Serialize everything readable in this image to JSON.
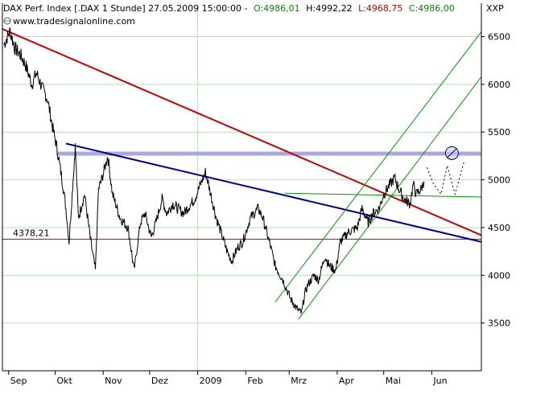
{
  "header": {
    "instrument": "DAX Perf. Index [.DAX  1 Stunde] 27.05.2009 15:00:00 -",
    "open": "O:4986,01",
    "high": "H:4992,22",
    "low": "L:4968,75",
    "close": "C:4986,00",
    "source": "www.tradesignalonline.com",
    "corner_label": "XXP"
  },
  "chart_data": {
    "type": "line",
    "title": "DAX Perf. Index [.DAX  1 Stunde]",
    "ylim": [
      3000,
      6850
    ],
    "y_ticks": [
      3500,
      4000,
      4500,
      5000,
      5500,
      6000,
      6500
    ],
    "x_ticks": [
      "Sep",
      "Okt",
      "Nov",
      "Dez",
      "2009",
      "Feb",
      "Mrz",
      "Apr",
      "Mai",
      "Jun"
    ],
    "x_tick_dates": [
      "2008-09-01",
      "2008-10-01",
      "2008-11-01",
      "2008-12-01",
      "2009-01-01",
      "2009-02-01",
      "2009-03-01",
      "2009-04-01",
      "2009-05-01",
      "2009-06-01"
    ],
    "xlim": [
      "2008-08-28",
      "2009-07-03"
    ],
    "price_path": [
      [
        "2008-08-29",
        6420
      ],
      [
        "2008-09-02",
        6560
      ],
      [
        "2008-09-05",
        6380
      ],
      [
        "2008-09-09",
        6300
      ],
      [
        "2008-09-12",
        6200
      ],
      [
        "2008-09-16",
        6000
      ],
      [
        "2008-09-19",
        6120
      ],
      [
        "2008-09-23",
        5950
      ],
      [
        "2008-09-26",
        5850
      ],
      [
        "2008-09-30",
        5500
      ],
      [
        "2008-10-02",
        5350
      ],
      [
        "2008-10-06",
        4950
      ],
      [
        "2008-10-08",
        4700
      ],
      [
        "2008-10-10",
        4350
      ],
      [
        "2008-10-13",
        5100
      ],
      [
        "2008-10-14",
        5350
      ],
      [
        "2008-10-16",
        4600
      ],
      [
        "2008-10-20",
        4850
      ],
      [
        "2008-10-24",
        4350
      ],
      [
        "2008-10-27",
        4050
      ],
      [
        "2008-10-29",
        4900
      ],
      [
        "2008-10-31",
        5000
      ],
      [
        "2008-11-04",
        5250
      ],
      [
        "2008-11-07",
        4850
      ],
      [
        "2008-11-12",
        4600
      ],
      [
        "2008-11-17",
        4500
      ],
      [
        "2008-11-21",
        4050
      ],
      [
        "2008-11-25",
        4550
      ],
      [
        "2008-11-28",
        4650
      ],
      [
        "2008-12-02",
        4400
      ],
      [
        "2008-12-05",
        4550
      ],
      [
        "2008-12-09",
        4800
      ],
      [
        "2008-12-12",
        4650
      ],
      [
        "2008-12-16",
        4750
      ],
      [
        "2008-12-19",
        4700
      ],
      [
        "2008-12-23",
        4650
      ],
      [
        "2008-12-30",
        4800
      ],
      [
        "2009-01-06",
        5080
      ],
      [
        "2009-01-08",
        4950
      ],
      [
        "2009-01-13",
        4600
      ],
      [
        "2009-01-16",
        4450
      ],
      [
        "2009-01-20",
        4250
      ],
      [
        "2009-01-23",
        4150
      ],
      [
        "2009-01-27",
        4300
      ],
      [
        "2009-01-30",
        4350
      ],
      [
        "2009-02-04",
        4600
      ],
      [
        "2009-02-09",
        4700
      ],
      [
        "2009-02-12",
        4600
      ],
      [
        "2009-02-17",
        4300
      ],
      [
        "2009-02-20",
        4100
      ],
      [
        "2009-02-25",
        3950
      ],
      [
        "2009-03-02",
        3750
      ],
      [
        "2009-03-06",
        3650
      ],
      [
        "2009-03-09",
        3600
      ],
      [
        "2009-03-11",
        3800
      ],
      [
        "2009-03-13",
        3900
      ],
      [
        "2009-03-17",
        4000
      ],
      [
        "2009-03-20",
        3950
      ],
      [
        "2009-03-24",
        4200
      ],
      [
        "2009-03-27",
        4100
      ],
      [
        "2009-03-31",
        4050
      ],
      [
        "2009-04-03",
        4350
      ],
      [
        "2009-04-08",
        4450
      ],
      [
        "2009-04-14",
        4500
      ],
      [
        "2009-04-17",
        4700
      ],
      [
        "2009-04-21",
        4550
      ],
      [
        "2009-04-24",
        4650
      ],
      [
        "2009-04-28",
        4700
      ],
      [
        "2009-05-01",
        4850
      ],
      [
        "2009-05-05",
        4950
      ],
      [
        "2009-05-08",
        5020
      ],
      [
        "2009-05-11",
        4900
      ],
      [
        "2009-05-14",
        4800
      ],
      [
        "2009-05-18",
        4750
      ],
      [
        "2009-05-20",
        4950
      ],
      [
        "2009-05-22",
        4850
      ],
      [
        "2009-05-25",
        4900
      ],
      [
        "2009-05-27",
        4986
      ]
    ],
    "price_color": "#000000",
    "trendlines": [
      {
        "from": [
          "2008-08-28",
          6580
        ],
        "to": [
          "2009-07-03",
          4420
        ],
        "color": "#cc0000"
      },
      {
        "from": [
          "2008-10-08",
          5380
        ],
        "to": [
          "2009-07-03",
          4350
        ],
        "color": "#000099"
      },
      {
        "from": [
          "2009-02-20",
          3720
        ],
        "to": [
          "2009-07-03",
          6550
        ],
        "color": "#009900"
      },
      {
        "from": [
          "2009-03-07",
          3540
        ],
        "to": [
          "2009-07-03",
          6080
        ],
        "color": "#009900"
      },
      {
        "from": [
          "2009-02-26",
          4860
        ],
        "to": [
          "2009-07-03",
          4820
        ],
        "color": "#009900"
      }
    ],
    "resistance_band": {
      "from": "2008-10-02",
      "to": "2009-07-03",
      "value": 5275,
      "color": "#9999dd"
    },
    "resistance_marker": {
      "date": "2009-06-14",
      "value": 5280
    },
    "horizontal_line": {
      "value": 4378.21,
      "label": "4378,21",
      "color": "#cc0000"
    },
    "projection_dotted": [
      [
        "2009-05-29",
        5130
      ],
      [
        "2009-06-02",
        4960
      ],
      [
        "2009-06-07",
        4850
      ],
      [
        "2009-06-11",
        5150
      ],
      [
        "2009-06-16",
        4850
      ],
      [
        "2009-06-22",
        5200
      ]
    ],
    "grid": true,
    "legend": "none"
  },
  "colors": {
    "background": "#ffffff",
    "grid_horizontal": "#b4e2b4",
    "axis": "#000000",
    "header_green": "#008800",
    "header_red": "#cc0000"
  }
}
